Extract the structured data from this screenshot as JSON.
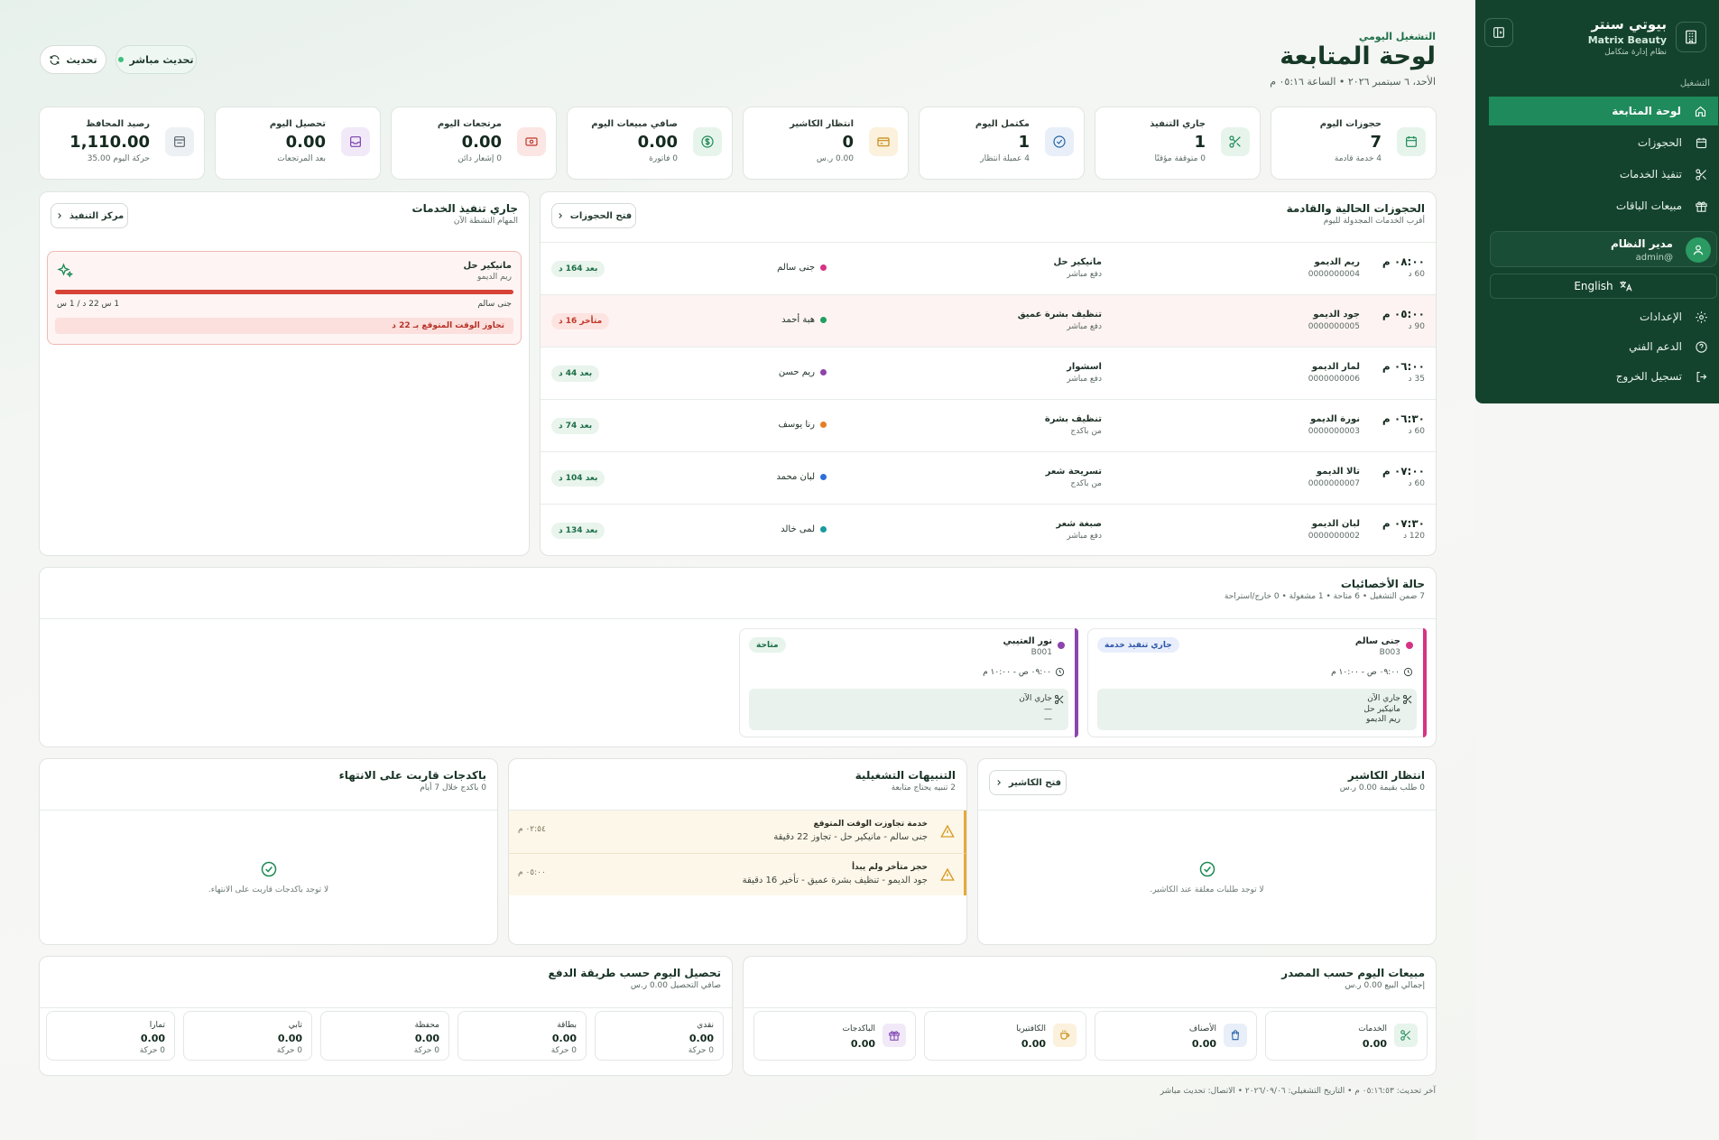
{
  "sidebar": {
    "brand_name": "بيوتي سنتر",
    "brand_sub": "Matrix Beauty",
    "brand_tag": "نظام إدارة متكامل",
    "section_label": "التشغيل",
    "items": [
      {
        "label": "لوحة المتابعة",
        "icon": "home-icon"
      },
      {
        "label": "الحجوزات",
        "icon": "calendar-icon"
      },
      {
        "label": "تنفيذ الخدمات",
        "icon": "scissors-icon"
      },
      {
        "label": "مبيعات الباقات",
        "icon": "gift-icon"
      }
    ],
    "user_name": "مدير النظام",
    "user_handle": "@admin",
    "lang_label": "English",
    "bottom_items": [
      {
        "label": "الإعدادات",
        "icon": "gear-icon"
      },
      {
        "label": "الدعم الفني",
        "icon": "help-icon"
      },
      {
        "label": "تسجيل الخروج",
        "icon": "logout-icon"
      }
    ]
  },
  "header": {
    "kicker": "التشغيل اليومي",
    "title": "لوحة المتابعة",
    "date": "الأحد، ٦ سبتمبر ٢٠٢٦ • الساعة ٠٥:١٦ م",
    "live_label": "تحديث مباشر",
    "refresh_label": "تحديث"
  },
  "kpis": [
    {
      "title": "حجوزات اليوم",
      "value": "7",
      "sub": "4 خدمة قادمة",
      "icon": "calendar-icon",
      "color": "#1c8a55",
      "bg": "#e7f4ec"
    },
    {
      "title": "جاري التنفيذ",
      "value": "1",
      "sub": "0 متوقفة مؤقتًا",
      "icon": "scissors-icon",
      "color": "#1c8a55",
      "bg": "#e7f4ec"
    },
    {
      "title": "مكتمل اليوم",
      "value": "1",
      "sub": "4 عميلة انتظار",
      "icon": "check-circle-icon",
      "color": "#2563a8",
      "bg": "#e8eff8"
    },
    {
      "title": "انتظار الكاشير",
      "value": "0",
      "sub": "0.00 ر.س",
      "icon": "card-icon",
      "color": "#c58a10",
      "bg": "#fbf1dc"
    },
    {
      "title": "صافي مبيعات اليوم",
      "value": "0.00",
      "sub": "0 فاتورة",
      "icon": "dollar-icon",
      "color": "#1c8a55",
      "bg": "#e7f4ec"
    },
    {
      "title": "مرتجعات اليوم",
      "value": "0.00",
      "sub": "0 إشعار دائن",
      "icon": "banknote-icon",
      "color": "#c0392b",
      "bg": "#fbe6e4"
    },
    {
      "title": "تحصيل اليوم",
      "value": "0.00",
      "sub": "بعد المرتجعات",
      "icon": "inbox-icon",
      "color": "#7b3fb0",
      "bg": "#f1e9f8"
    },
    {
      "title": "رصيد المحافظ",
      "value": "1,110.00",
      "sub": "حركة اليوم 35.00",
      "icon": "wallet-icon",
      "color": "#5b6770",
      "bg": "#eef1f3"
    }
  ],
  "bookings": {
    "title": "الحجوزات الحالية والقادمة",
    "subtitle": "أقرب الخدمات المجدولة لليوم",
    "open_label": "فتح الحجوزات",
    "rows": [
      {
        "time": "٠٨:٠٠ م",
        "dur": "60 د",
        "client": "ريم الديمو",
        "code": "0000000004",
        "service": "مانيكير حل",
        "pay": "دفع مباشر",
        "emp": "جنى سالم",
        "emp_color": "#d63384",
        "badge": "بعد 164 د",
        "late": false
      },
      {
        "time": "٠٥:٠٠ م",
        "dur": "90 د",
        "client": "جود الديمو",
        "code": "0000000005",
        "service": "تنظيف بشرة عميق",
        "pay": "دفع مباشر",
        "emp": "هبة أحمد",
        "emp_color": "#20a060",
        "badge": "متأخر 16 د",
        "late": true
      },
      {
        "time": "٠٦:٠٠ م",
        "dur": "35 د",
        "client": "لمار الديمو",
        "code": "0000000006",
        "service": "اسشوار",
        "pay": "دفع مباشر",
        "emp": "ريم حسن",
        "emp_color": "#8e44ad",
        "badge": "بعد 44 د",
        "late": false
      },
      {
        "time": "٠٦:٣٠ م",
        "dur": "60 د",
        "client": "نورة الديمو",
        "code": "0000000003",
        "service": "تنظيف بشرة",
        "pay": "من باكدج",
        "emp": "رنا يوسف",
        "emp_color": "#e67e22",
        "badge": "بعد 74 د",
        "late": false
      },
      {
        "time": "٠٧:٠٠ م",
        "dur": "60 د",
        "client": "تالا الديمو",
        "code": "0000000007",
        "service": "تسريحة شعر",
        "pay": "من باكدج",
        "emp": "لبان محمد",
        "emp_color": "#2e6fd8",
        "badge": "بعد 104 د",
        "late": false
      },
      {
        "time": "٠٧:٣٠ م",
        "dur": "120 د",
        "client": "لبان الديمو",
        "code": "0000000002",
        "service": "صبغة شعر",
        "pay": "دفع مباشر",
        "emp": "لمى خالد",
        "emp_color": "#1a9aa0",
        "badge": "بعد 134 د",
        "late": false
      }
    ]
  },
  "running": {
    "title": "جاري تنفيذ الخدمات",
    "subtitle": "المهام النشطة الآن",
    "center_label": "مركز التنفيذ",
    "item": {
      "service": "مانيكير حل",
      "client": "ريم الديمو",
      "emp": "جنى سالم",
      "time": "1 س 22 د / 1 س",
      "warning": "تجاوز الوقت المتوقع بـ 22 د",
      "progress": 1.0
    }
  },
  "specialists": {
    "title": "حالة الأخصائيات",
    "subtitle": "7 ضمن التشغيل • 6 متاحة • 1 مشغولة • 0 خارج/استراحة",
    "cards": [
      {
        "name": "جنى سالم",
        "code": "B003",
        "status": "جاري تنفيذ خدمة",
        "hours": "٠٩:٠٠ ص - ١٠:٠٠ م",
        "l1": "جاري الآن",
        "l2": "مانيكير حل",
        "l3": "ريم الديمو",
        "color": "#d63384",
        "status_bg": "#e8eefb",
        "status_fg": "#2c56a8"
      },
      {
        "name": "نور العتيبي",
        "code": "B001",
        "status": "متاحة",
        "hours": "٠٩:٠٠ ص - ١٠:٠٠ م",
        "l1": "جاري الآن",
        "l2": "—",
        "l3": "—",
        "color": "#8e44ad",
        "status_bg": "#e7f4ec",
        "status_fg": "#1c6e47"
      }
    ]
  },
  "cashier": {
    "title": "انتظار الكاشير",
    "subtitle": "0 طلب بقيمة 0.00 ر.س",
    "open_label": "فتح الكاشير",
    "empty": "لا توجد طلبات معلقة عند الكاشير."
  },
  "alerts": {
    "title": "التنبيهات التشغيلية",
    "subtitle": "2 تنبيه يحتاج متابعة",
    "items": [
      {
        "title": "خدمة تجاوزت الوقت المتوقع",
        "detail": "جنى سالم - مانيكير حل - تجاوز 22 دقيقة",
        "time": "٠٢:٥٤ م"
      },
      {
        "title": "حجز متأخر ولم يبدأ",
        "detail": "جود الديمو - تنظيف بشرة عميق - تأخير 16 دقيقة",
        "time": "٠٥:٠٠ م"
      }
    ]
  },
  "packages": {
    "title": "باكدجات قاربت على الانتهاء",
    "subtitle": "0 باكدج خلال 7 أيام",
    "empty": "لا توجد باكدجات قاربت على الانتهاء."
  },
  "sales": {
    "title": "مبيعات اليوم حسب المصدر",
    "subtitle": "إجمالي البيع 0.00 ر.س",
    "items": [
      {
        "label": "الخدمات",
        "value": "0.00",
        "icon": "scissors-icon",
        "color": "#1c8a55",
        "bg": "#e7f4ec"
      },
      {
        "label": "الأصناف",
        "value": "0.00",
        "icon": "bag-icon",
        "color": "#2563a8",
        "bg": "#e8eff8"
      },
      {
        "label": "الكافتيريا",
        "value": "0.00",
        "icon": "coffee-icon",
        "color": "#c58a10",
        "bg": "#fbf1dc"
      },
      {
        "label": "الباكدجات",
        "value": "0.00",
        "icon": "gift-icon",
        "color": "#7b3fb0",
        "bg": "#f1e9f8"
      }
    ]
  },
  "collection": {
    "title": "تحصيل اليوم حسب طريقة الدفع",
    "subtitle": "صافي التحصيل 0.00 ر.س",
    "items": [
      {
        "label": "نقدي",
        "value": "0.00",
        "sub": "0 حركة"
      },
      {
        "label": "بطاقة",
        "value": "0.00",
        "sub": "0 حركة"
      },
      {
        "label": "محفظة",
        "value": "0.00",
        "sub": "0 حركة"
      },
      {
        "label": "تابي",
        "value": "0.00",
        "sub": "0 حركة"
      },
      {
        "label": "تمارا",
        "value": "0.00",
        "sub": "0 حركة"
      }
    ]
  },
  "footer": "آخر تحديث: ٠٥:١٦:٥٣ م • التاريخ التشغيلي: ٢٠٢٦/٠٩/٠٦ • الاتصال: تحديث مباشر"
}
